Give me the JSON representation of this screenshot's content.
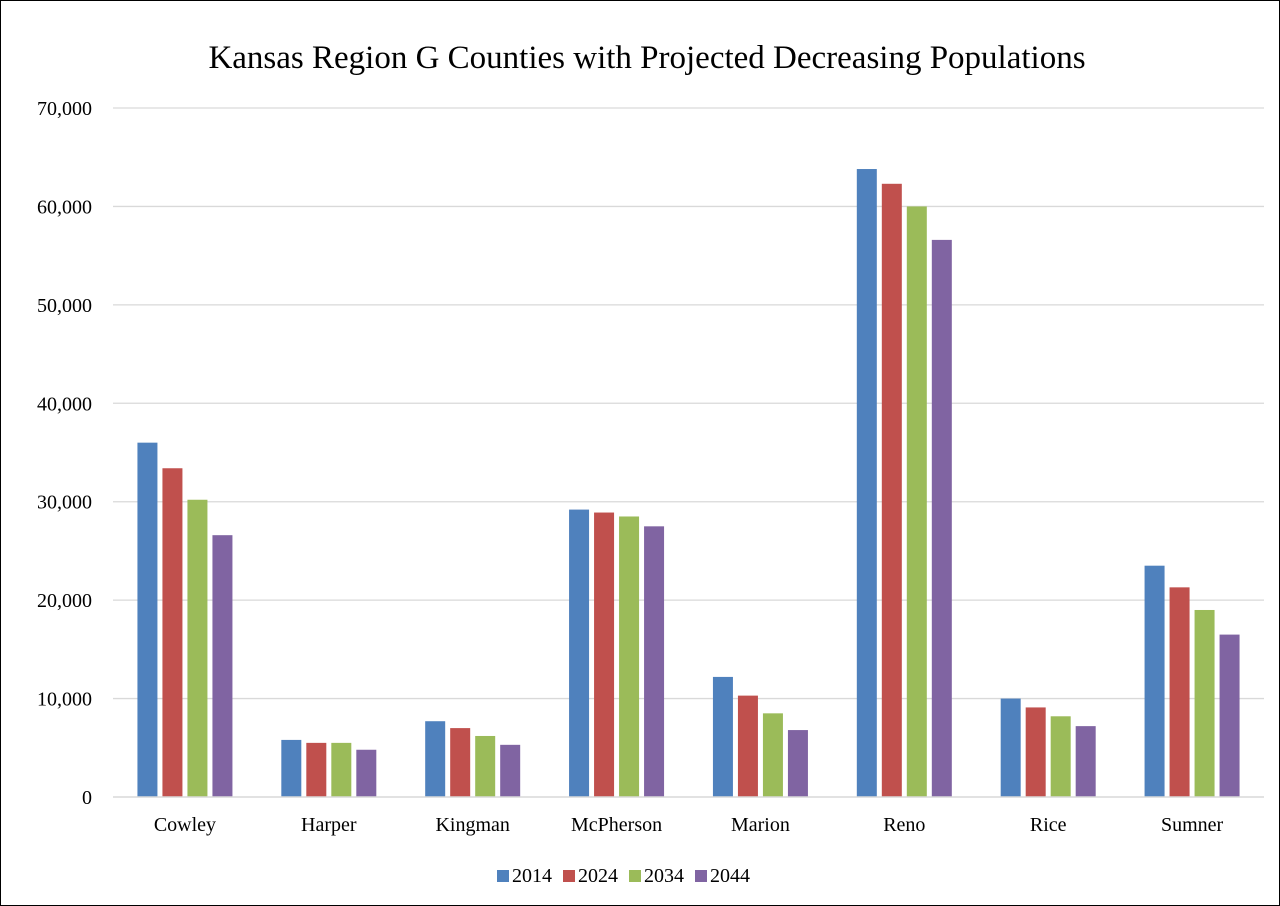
{
  "chart_data": {
    "type": "bar",
    "title": "Kansas Region G Counties with Projected Decreasing Populations",
    "xlabel": "",
    "ylabel": "",
    "categories": [
      "Cowley",
      "Harper",
      "Kingman",
      "McPherson",
      "Marion",
      "Reno",
      "Rice",
      "Sumner"
    ],
    "series": [
      {
        "name": "2014",
        "color": "#4f81bd",
        "values": [
          36000,
          5800,
          7700,
          29200,
          12200,
          63800,
          10000,
          23500
        ]
      },
      {
        "name": "2024",
        "color": "#c0504d",
        "values": [
          33400,
          5500,
          7000,
          28900,
          10300,
          62300,
          9100,
          21300
        ]
      },
      {
        "name": "2034",
        "color": "#9bbb59",
        "values": [
          30200,
          5500,
          6200,
          28500,
          8500,
          60000,
          8200,
          19000
        ]
      },
      {
        "name": "2044",
        "color": "#8064a2",
        "values": [
          26600,
          4800,
          5300,
          27500,
          6800,
          56600,
          7200,
          16500
        ]
      }
    ],
    "ylim": [
      0,
      70000
    ],
    "yticks": [
      "0",
      "10,000",
      "20,000",
      "30,000",
      "40,000",
      "50,000",
      "60,000",
      "70,000"
    ],
    "grid": true,
    "gridline_color": "#d9d9d9",
    "legend_position": "bottom"
  }
}
